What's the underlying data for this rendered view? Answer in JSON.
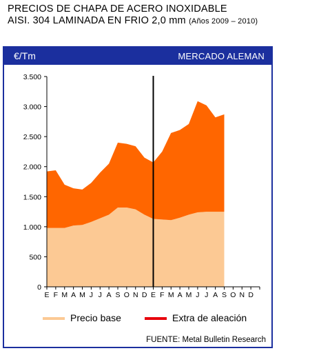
{
  "title": {
    "line1": "PRECIOS DE CHAPA DE ACERO INOXIDABLE",
    "line2": "AISI. 304 LAMINADA EN FRIO 2,0 mm",
    "years": "(Años 2009 – 2010)"
  },
  "header": {
    "unit": "€/Tm",
    "market": "MERCADO ALEMAN"
  },
  "colors": {
    "frame": "#1b2f9e",
    "base": "#fcc994",
    "alloy": "#ff6600",
    "alloy_legend": "#e8000b"
  },
  "source": "FUENTE: Metal Bulletin Research",
  "chart_data": {
    "type": "area",
    "stacked": true,
    "x": [
      "E",
      "F",
      "M",
      "A",
      "M",
      "J",
      "J",
      "A",
      "S",
      "O",
      "N",
      "D",
      "E",
      "F",
      "M",
      "A",
      "M",
      "J",
      "J",
      "A",
      "S",
      "O",
      "N",
      "D"
    ],
    "year_divider_after_index": 11,
    "ylim": [
      0,
      3500
    ],
    "yticks": [
      0,
      500,
      1000,
      1500,
      2000,
      2500,
      3000,
      3500
    ],
    "ytick_labels": [
      "0",
      "500",
      "1.000",
      "1.500",
      "2.000",
      "2.500",
      "3.000",
      "3.500"
    ],
    "grid": false,
    "legend_position": "bottom",
    "series": [
      {
        "name": "Precio base",
        "values": [
          980,
          980,
          980,
          1020,
          1030,
          1080,
          1140,
          1200,
          1320,
          1320,
          1290,
          1200,
          1130,
          1120,
          1110,
          1150,
          1200,
          1240,
          1250,
          1250,
          1250,
          null,
          null,
          null
        ]
      },
      {
        "name": "Extra de aleación",
        "values": [
          940,
          960,
          720,
          620,
          590,
          650,
          760,
          850,
          1080,
          1060,
          1050,
          950,
          940,
          1130,
          1450,
          1460,
          1510,
          1850,
          1770,
          1570,
          1620,
          null,
          null,
          null
        ]
      }
    ]
  }
}
